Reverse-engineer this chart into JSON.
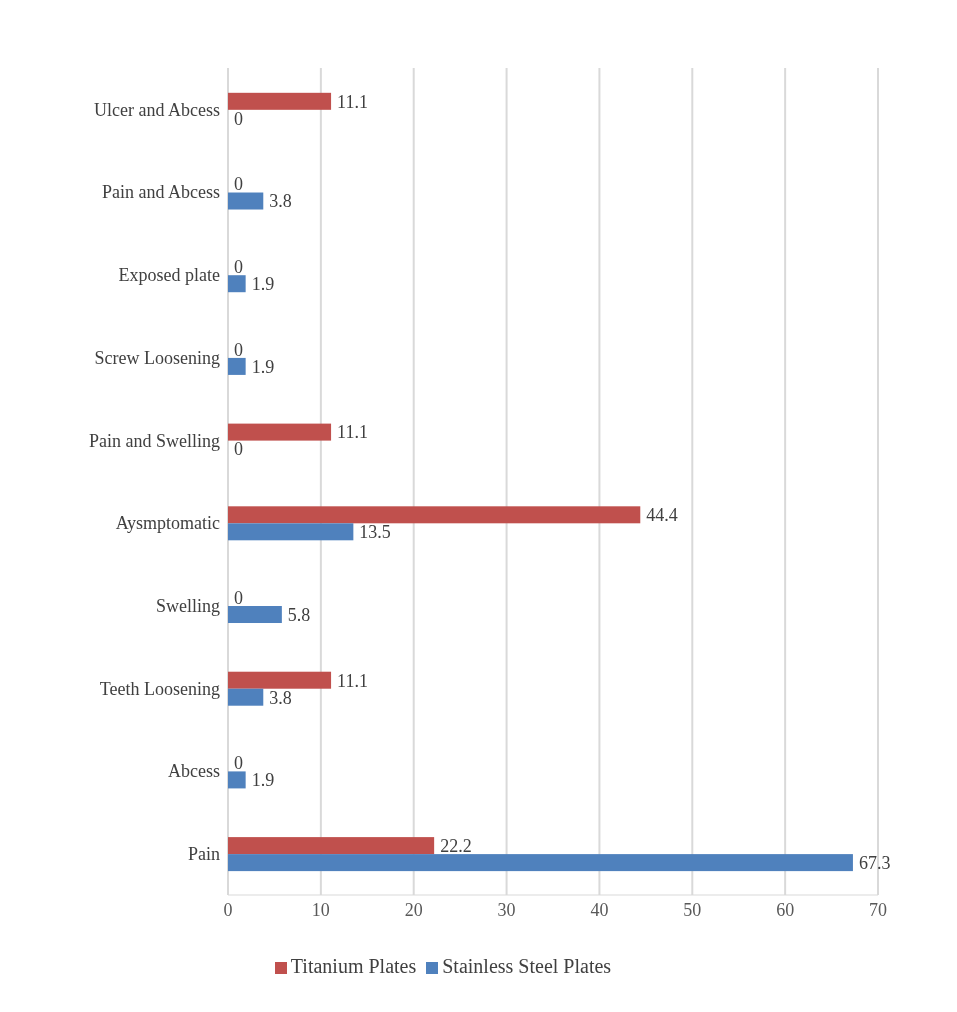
{
  "chart_data": {
    "type": "bar",
    "orientation": "horizontal",
    "categories": [
      "Ulcer and Abcess",
      "Pain and Abcess",
      "Exposed plate",
      "Screw Loosening",
      "Pain and Swelling",
      "Aysmptomatic",
      "Swelling",
      "Teeth Loosening",
      "Abcess",
      "Pain"
    ],
    "series": [
      {
        "name": "Titanium Plates",
        "color": "#c0504d",
        "values": [
          11.1,
          0,
          0,
          0,
          11.1,
          44.4,
          0,
          11.1,
          0,
          22.2
        ]
      },
      {
        "name": "Stainless Steel Plates",
        "color": "#4f81bd",
        "values": [
          0,
          3.8,
          1.9,
          1.9,
          0,
          13.5,
          5.8,
          3.8,
          1.9,
          67.3
        ]
      }
    ],
    "xlim": [
      0,
      70
    ],
    "xticks": [
      0,
      10,
      20,
      30,
      40,
      50,
      60,
      70
    ],
    "grid": "x",
    "legend": "bottom",
    "data_labels": true
  }
}
